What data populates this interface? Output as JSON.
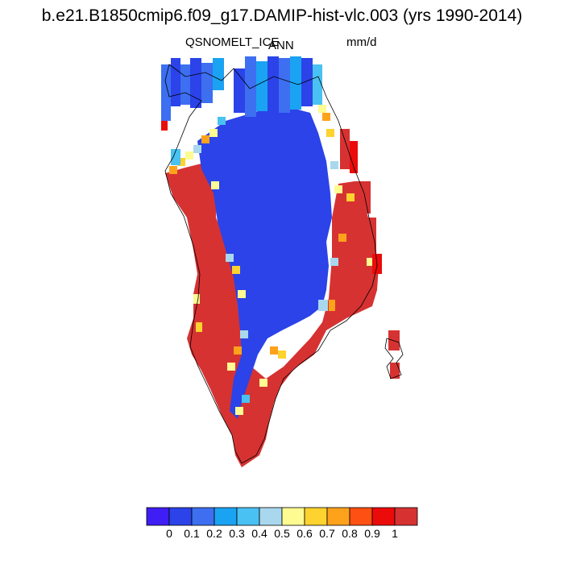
{
  "header": {
    "title": "b.e21.B1850cmip6.f09_g17.DAMIP-hist-vlc.003 (yrs 1990-2014)",
    "variable": "QSNOMELT_ICE",
    "season": "ANN",
    "units": "mm/d"
  },
  "colorbar": {
    "colors": [
      "#3f1df5",
      "#2b43e8",
      "#3d6ff0",
      "#1aa3f2",
      "#49c1f2",
      "#a9d8ee",
      "#fdfb91",
      "#fed22f",
      "#fea21c",
      "#fe5012",
      "#ec0b0b",
      "#d63232"
    ],
    "labels": [
      "0",
      "0.1",
      "0.2",
      "0.3",
      "0.4",
      "0.5",
      "0.6",
      "0.7",
      "0.8",
      "0.9",
      "1"
    ]
  },
  "map": {
    "region": "Greenland",
    "palette": {
      "interior": "#2b43e8",
      "margin": "#d63232",
      "outline": "#000000"
    }
  }
}
